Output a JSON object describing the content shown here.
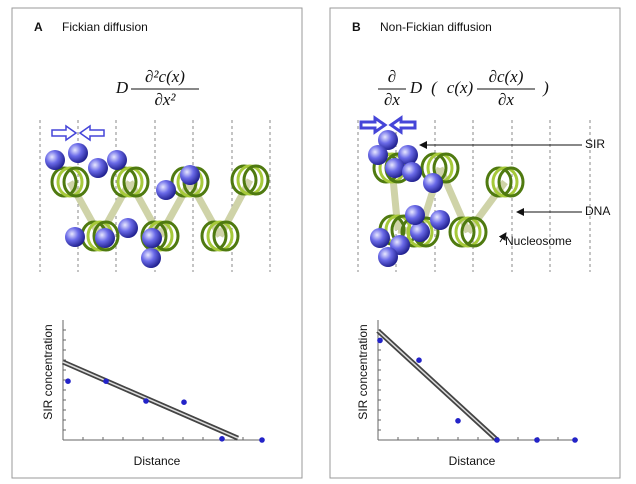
{
  "panels": [
    {
      "label": "A",
      "title": "Fickian diffusion",
      "equation": [
        {
          "text": "D"
        },
        {
          "num": "∂²c(x)",
          "den": "∂x²"
        }
      ],
      "annotations": [],
      "plot": {
        "x_label": "Distance",
        "y_label": "SIR concentration",
        "xlim": [
          0,
          10
        ],
        "ylim": [
          0,
          10
        ],
        "x": [
          0.25,
          2.15,
          4.15,
          6.05,
          7.95,
          9.95
        ],
        "y": [
          4.9,
          4.9,
          3.25,
          3.15,
          0.1,
          0
        ],
        "fit": {
          "x": [
            0,
            8.75
          ],
          "y": [
            6.5,
            0.15
          ]
        }
      }
    },
    {
      "label": "B",
      "title": "Non-Fickian diffusion",
      "equation": [
        {
          "num": "∂",
          "den": "∂x"
        },
        {
          "text": "D"
        },
        {
          "text": "("
        },
        {
          "text": "c(x)"
        },
        {
          "num": "∂c(x)",
          "den": "∂x"
        },
        {
          "text": ")"
        }
      ],
      "annotations": [
        "SIR",
        "DNA",
        "Nucleosome"
      ],
      "plot": {
        "x_label": "Distance",
        "y_label": "SIR concentration",
        "xlim": [
          0,
          10
        ],
        "ylim": [
          0,
          10
        ],
        "x": [
          0.1,
          2.05,
          4,
          5.95,
          7.95,
          9.85
        ],
        "y": [
          8.3,
          6.65,
          1.6,
          0,
          0,
          0
        ],
        "fit": {
          "x": [
            0,
            5.95
          ],
          "y": [
            9.1,
            0
          ]
        }
      }
    }
  ]
}
